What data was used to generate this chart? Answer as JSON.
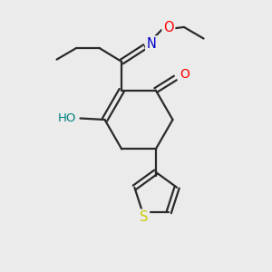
{
  "background_color": "#ebebeb",
  "bond_color": "#2a2a2a",
  "atom_colors": {
    "O": "#ff0000",
    "N": "#0000cc",
    "S": "#cccc00",
    "HO": "#008080",
    "C": "#2a2a2a"
  },
  "figsize": [
    3.0,
    3.0
  ],
  "dpi": 100
}
